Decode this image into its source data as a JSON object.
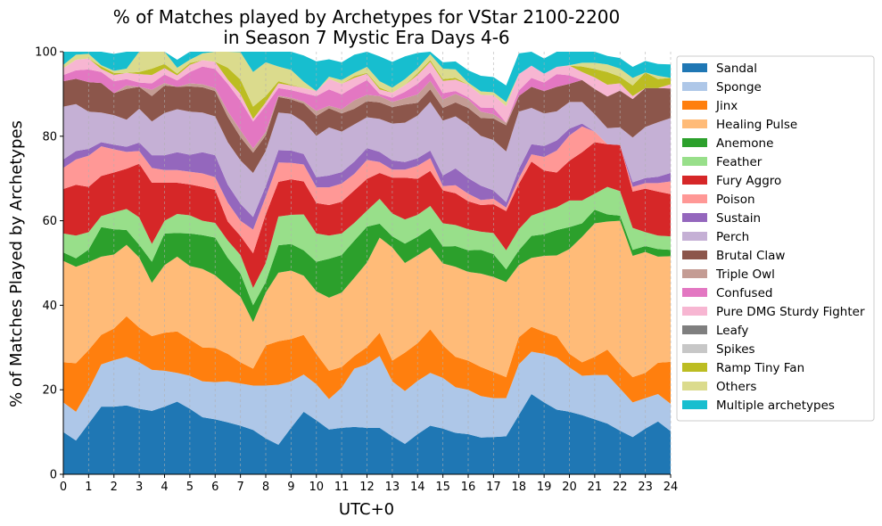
{
  "chart_data": {
    "type": "area",
    "stacked": true,
    "title_line1": "% of Matches played by Archetypes for VStar 2100-2200",
    "title_line2": "in Season 7 Mystic Era Days 4-6",
    "xlabel": "UTC+0",
    "ylabel": "% of Matches Played by Archetypes",
    "xlim": [
      0,
      24
    ],
    "ylim": [
      0,
      100
    ],
    "x_ticks": [
      "0",
      "1",
      "2",
      "3",
      "4",
      "5",
      "6",
      "7",
      "8",
      "9",
      "10",
      "11",
      "12",
      "13",
      "14",
      "15",
      "16",
      "17",
      "18",
      "19",
      "20",
      "21",
      "22",
      "23",
      "24"
    ],
    "y_ticks": [
      "0",
      "20",
      "40",
      "60",
      "80",
      "100"
    ],
    "grid": "x-dashed",
    "legend_position": "outside-right",
    "x": [
      0,
      0.5,
      1,
      1.5,
      2,
      2.5,
      3,
      3.5,
      4,
      4.5,
      5,
      5.5,
      6,
      6.5,
      7,
      7.5,
      8,
      8.5,
      9,
      9.5,
      10,
      10.5,
      11,
      11.5,
      12,
      12.5,
      13,
      13.5,
      14,
      14.5,
      15,
      15.5,
      16,
      16.5,
      17,
      17.5,
      18,
      18.5,
      19,
      19.5,
      20,
      20.5,
      21,
      21.5,
      22,
      22.5,
      23,
      23.5,
      24
    ],
    "series": [
      {
        "name": "Sandal",
        "color": "#1f77b4",
        "values": [
          10,
          8,
          12,
          16,
          16,
          16.3,
          15.5,
          15,
          16,
          17.2,
          15.5,
          13.5,
          13,
          12.3,
          11.5,
          10.5,
          8.5,
          7,
          11,
          14.8,
          12.8,
          10.6,
          11,
          11.2,
          11,
          11,
          9,
          7.2,
          9.5,
          11.5,
          10.8,
          9.8,
          9.5,
          8.7,
          8.8,
          9,
          14,
          19,
          17,
          15.3,
          14.8,
          14,
          13,
          12,
          10.3,
          8.8,
          10.8,
          12.5,
          10.2
        ]
      },
      {
        "name": "Sponge",
        "color": "#aec7e8",
        "values": [
          7,
          6.8,
          8,
          10,
          11,
          11.5,
          11,
          9.7,
          8.5,
          6.8,
          7.8,
          8.5,
          8.8,
          9.7,
          10,
          10.5,
          12.5,
          14.2,
          11,
          8.8,
          8.5,
          7.2,
          9.5,
          13.8,
          15,
          17,
          13,
          12.5,
          12.6,
          12.5,
          12,
          10.8,
          10.5,
          9.8,
          9.2,
          9,
          12,
          10,
          11.5,
          12.3,
          10.5,
          9.3,
          10.5,
          11.5,
          10,
          8.2,
          7.2,
          6.5,
          6.5
        ]
      },
      {
        "name": "Jinx",
        "color": "#ff7f0e",
        "values": [
          9.5,
          11.5,
          9.4,
          7,
          7.5,
          9.6,
          8.2,
          8,
          9,
          9.8,
          8.6,
          8,
          8.1,
          6.5,
          5,
          4,
          9.5,
          10.3,
          10,
          9.4,
          7.2,
          6.7,
          4.9,
          3,
          4.1,
          5.5,
          4.9,
          9.1,
          8.9,
          10.3,
          7.7,
          7.2,
          6.9,
          6.9,
          6.2,
          5,
          6.4,
          5.9,
          5.2,
          5.1,
          3.2,
          3.2,
          4.3,
          6,
          5.7,
          6,
          6,
          7.4,
          9.9
        ]
      },
      {
        "name": "Healing Pulse",
        "color": "#ffbb78",
        "values": [
          24,
          22.8,
          20.8,
          18.5,
          17.5,
          16.9,
          16.6,
          12.6,
          16,
          17.7,
          17.4,
          18.6,
          17.2,
          16,
          15.5,
          11,
          12.5,
          16.2,
          16.2,
          14,
          14.8,
          17.3,
          17.6,
          18.5,
          20,
          22.5,
          26.8,
          21.2,
          20.8,
          19.4,
          19.4,
          21.3,
          21,
          22.1,
          22.5,
          22.5,
          17.1,
          16.3,
          18,
          19.1,
          24.8,
          29.7,
          31.6,
          30.3,
          34,
          28.7,
          28.6,
          25.1,
          25
        ]
      },
      {
        "name": "Anemone",
        "color": "#2ca02c",
        "values": [
          2,
          2,
          3,
          7,
          6,
          3.5,
          3,
          5,
          7.5,
          5.6,
          7.7,
          8,
          8.9,
          6.7,
          5.5,
          4,
          2.5,
          6.5,
          6.3,
          6,
          7,
          9.2,
          8.9,
          8.8,
          8.5,
          3.3,
          2.6,
          4.6,
          4.4,
          4.5,
          4,
          4.9,
          5.1,
          5.6,
          5.4,
          3,
          3.5,
          5.2,
          5.1,
          6,
          5.2,
          3.2,
          3.2,
          1.7,
          1.2,
          1.4,
          1.4,
          1.8,
          1.5
        ]
      },
      {
        "name": "Feather",
        "color": "#98df8a",
        "values": [
          4.5,
          5.4,
          4.1,
          2.6,
          4,
          5,
          6.5,
          4.2,
          3,
          4.5,
          4.3,
          3.4,
          3.5,
          4.1,
          4.4,
          4.1,
          4.5,
          6.8,
          6.9,
          8.5,
          6.7,
          5.5,
          5.1,
          4.2,
          3.8,
          5.9,
          5.4,
          5.7,
          5.2,
          5.3,
          5.5,
          5,
          5,
          4.3,
          5,
          4.5,
          5,
          4.8,
          5.5,
          5.4,
          6.3,
          5.4,
          3.8,
          6.5,
          5.8,
          5.2,
          3.3,
          3.2,
          3.2
        ]
      },
      {
        "name": "Fury Aggro",
        "color": "#d62728",
        "values": [
          10.5,
          12,
          10.7,
          9.5,
          9.4,
          9.5,
          12.7,
          14.5,
          9,
          7.4,
          7.3,
          8,
          7.8,
          4.5,
          4.5,
          8.2,
          11.5,
          8.2,
          8.4,
          7.8,
          7.2,
          7.2,
          7.5,
          7.7,
          7.5,
          6.1,
          8.5,
          9.9,
          8.5,
          8.3,
          7.8,
          7.5,
          6.6,
          6.3,
          6.8,
          9.3,
          10.7,
          12.8,
          9.6,
          8.2,
          9.4,
          11.4,
          12.2,
          10.1,
          10.9,
          8.6,
          10.3,
          10.4,
          10
        ]
      },
      {
        "name": "Poison",
        "color": "#ff9896",
        "values": [
          5,
          6,
          7.4,
          7,
          5.5,
          4,
          3,
          3.5,
          3,
          3,
          3,
          3.2,
          3,
          4.5,
          3.6,
          5.6,
          4.2,
          4.6,
          3.9,
          4,
          3.7,
          4.2,
          4.3,
          3.9,
          4.5,
          2.6,
          1.9,
          1.9,
          3.1,
          3,
          1,
          1.9,
          1.8,
          1.2,
          1.3,
          0.8,
          1.3,
          1.7,
          3.2,
          5.2,
          6,
          6.1,
          2.5,
          0,
          0,
          1.1,
          1.3,
          2,
          3
        ]
      },
      {
        "name": "Sustain",
        "color": "#9467bd",
        "values": [
          2,
          2,
          1.6,
          1,
          1.1,
          1.2,
          2,
          3,
          3.5,
          4.2,
          4,
          5,
          5.2,
          4.2,
          4,
          3,
          2.5,
          2.9,
          2.9,
          2.5,
          2.4,
          2.8,
          2.7,
          2.9,
          2.8,
          2.4,
          2.2,
          1.8,
          1.8,
          1.8,
          2.5,
          4,
          3.7,
          3.4,
          2,
          1.3,
          2.2,
          2.4,
          2.6,
          2.4,
          1.6,
          0.7,
          0,
          0,
          0,
          1.1,
          1.2,
          1.5,
          2
        ]
      },
      {
        "name": "Perch",
        "color": "#c5b0d5",
        "values": [
          12.5,
          11.1,
          8.8,
          7,
          7,
          6.4,
          8,
          8,
          10,
          10.2,
          10.2,
          9.4,
          9.2,
          10.1,
          10.3,
          10.4,
          8.3,
          8.9,
          8.7,
          7.6,
          9.8,
          11.4,
          9.6,
          8.8,
          7.3,
          7.8,
          8.7,
          9.3,
          10.1,
          11.5,
          13,
          12.3,
          12.6,
          11.8,
          11.9,
          12,
          13.6,
          8.6,
          7.7,
          6.9,
          6.3,
          5.1,
          4.1,
          3.8,
          4.2,
          10.6,
          12.1,
          12.9,
          13
        ]
      },
      {
        "name": "Brutal Claw",
        "color": "#8c564b",
        "values": [
          6,
          6,
          7,
          7,
          5.2,
          7.3,
          5.2,
          6,
          6.5,
          5.3,
          6,
          6,
          6,
          6,
          5.5,
          4.8,
          3.7,
          3.7,
          3.4,
          4.3,
          4.7,
          4.5,
          4.3,
          3.7,
          3.8,
          3.9,
          3.9,
          4.3,
          3,
          3,
          3,
          3.3,
          4,
          4.2,
          5.1,
          6.2,
          3.7,
          5,
          5.3,
          5.8,
          4.3,
          5.2,
          6,
          7.5,
          8.7,
          9.1,
          9.2,
          8.1,
          7
        ]
      },
      {
        "name": "Triple Owl",
        "color": "#c49c94",
        "values": [
          0,
          0,
          0,
          0,
          0,
          0.8,
          0,
          1.5,
          0.6,
          0,
          0.7,
          0.7,
          0.7,
          1.3,
          1.6,
          1,
          0.8,
          0.3,
          0.4,
          0.5,
          1.2,
          0.6,
          1,
          2,
          1.5,
          1.5,
          1.2,
          1.5,
          2,
          2,
          2,
          2,
          2,
          1.5,
          1,
          0.6,
          0,
          0,
          0,
          0,
          0,
          0,
          0,
          0,
          0,
          0,
          0,
          0,
          0
        ]
      },
      {
        "name": "Confused",
        "color": "#e377c2",
        "values": [
          1.5,
          2,
          3,
          2.6,
          2.8,
          1.5,
          1,
          1.5,
          2,
          1.5,
          2.7,
          4.2,
          4.5,
          6.5,
          7,
          6.4,
          6.2,
          1.8,
          1.8,
          2,
          3.5,
          3.9,
          3.5,
          3.2,
          3.5,
          0.5,
          1,
          1.5,
          2.5,
          2,
          1.5,
          0.7,
          0.5,
          1,
          1.5,
          0,
          1.3,
          2.1,
          2,
          3,
          2,
          0,
          0,
          0,
          0,
          0,
          0,
          0,
          0
        ]
      },
      {
        "name": "Pure DMG Sturdy Fighter",
        "color": "#f7b6d2",
        "values": [
          1.6,
          2.5,
          2.6,
          0.7,
          1.5,
          1.5,
          2,
          2,
          1.5,
          1.2,
          1.7,
          1.5,
          1.7,
          1,
          1.6,
          0.6,
          0.8,
          1.1,
          1.1,
          1.2,
          1.2,
          2.5,
          2.5,
          2.1,
          1.5,
          1.1,
          1.2,
          1.6,
          2.1,
          2.5,
          2.9,
          2.7,
          3,
          3,
          3,
          3.9,
          3.9,
          2.9,
          2.1,
          1.7,
          2.3,
          1.9,
          2.7,
          2.8,
          1.7,
          0.7,
          0,
          0,
          1
        ]
      },
      {
        "name": "Leafy",
        "color": "#7f7f7f",
        "values": [
          0,
          0,
          0,
          0,
          0,
          0,
          0,
          0,
          0,
          0,
          0,
          0,
          0,
          0,
          0,
          0,
          0,
          0,
          0,
          0,
          0,
          0,
          0,
          0,
          0,
          0,
          0,
          0,
          0,
          0,
          0,
          0,
          0,
          0,
          0,
          0,
          0,
          0,
          0,
          0,
          0,
          0,
          0,
          0,
          0,
          0,
          0,
          0,
          0
        ]
      },
      {
        "name": "Spikes",
        "color": "#c7c7c7",
        "values": [
          0,
          0,
          0,
          0,
          0,
          0,
          0,
          0,
          0,
          0,
          0,
          0,
          0,
          0,
          0,
          0,
          0,
          0,
          0,
          0,
          0,
          0,
          0,
          0,
          0,
          0,
          0,
          0,
          0,
          0,
          0,
          0,
          0,
          0,
          0,
          0,
          0,
          0,
          0,
          0,
          0,
          0,
          0,
          0,
          0,
          0,
          0,
          0,
          0
        ]
      },
      {
        "name": "Ramp Tiny Fan",
        "color": "#bcbd22",
        "values": [
          0,
          0,
          0,
          0.6,
          0.5,
          0,
          0.5,
          1.5,
          1,
          0.4,
          0.4,
          0,
          0,
          2.8,
          3.4,
          2.9,
          1.5,
          0.5,
          0.2,
          0,
          0,
          0,
          0,
          0.4,
          0.2,
          0.4,
          0,
          0,
          0.4,
          0.4,
          0.4,
          0.4,
          0,
          0,
          0,
          0,
          0,
          0,
          0,
          0,
          0,
          1.3,
          2,
          3,
          1.6,
          2.5,
          3.7,
          2.1,
          1.5
        ]
      },
      {
        "name": "Others",
        "color": "#dbdb8d",
        "values": [
          0.8,
          1.2,
          1.1,
          0.3,
          0.5,
          1,
          5,
          5.5,
          3,
          1.4,
          0.8,
          1.6,
          2.8,
          4.2,
          6.5,
          8.2,
          8,
          3.5,
          3.5,
          1.5,
          0,
          0.5,
          0.9,
          0.8,
          1.4,
          1.5,
          1.2,
          1.4,
          1.2,
          1.4,
          2.5,
          2,
          0.5,
          0.8,
          0.7,
          1,
          0,
          0,
          0,
          0,
          0.1,
          0.9,
          1.5,
          1.8,
          1.9,
          1.8,
          0,
          0.8,
          0
        ]
      },
      {
        "name": "Multiple archetypes",
        "color": "#17becf",
        "values": [
          3.1,
          2.7,
          2.5,
          3.2,
          4,
          4,
          1.8,
          2,
          1.4,
          1.9,
          2,
          2.5,
          3,
          4.8,
          5.3,
          5.6,
          6.6,
          5.5,
          5.4,
          6.2,
          7,
          4.1,
          4.2,
          4.3,
          4.7,
          5.9,
          6.1,
          5.4,
          3.6,
          2.6,
          1.5,
          1.9,
          2.9,
          3.7,
          3.6,
          3.9,
          4.9,
          3.9,
          3.6,
          4,
          4.8,
          4.4,
          3,
          2,
          2.5,
          2.6,
          2.7,
          2.8,
          3.2
        ]
      }
    ]
  }
}
